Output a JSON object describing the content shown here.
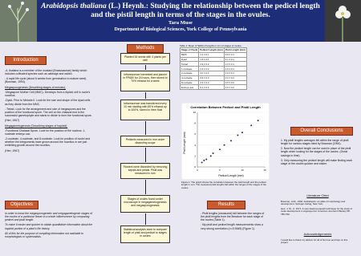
{
  "header": {
    "title_italic": "Arabidopsis thaliana",
    "title_rest": " (L.) Heynh.: Studying the relationship between the pedicel length and the pistil length in terms of the stages in the ovules.",
    "author": "Tara Muse",
    "affiliation": "Department of Biological Sciences, York College of Pennsylvania"
  },
  "introduction": {
    "heading": "Introduction",
    "paragraphs": [
      "-A. thaliana is a member of the mustard (Brassicaceae) family which includes cultivated species such as cabbage and radish.",
      "- A rapid life cycle (about 6 weeks from germination to mature seed) (Bowman, 1994)."
    ],
    "megasporogenesis": {
      "heading": "Megasporogenesis (Describing stages of meiosis):",
      "paragraphs": [
        "-Megaspore Mother Cell (MMC)- Develops from a diploid cell in ovule's nucellus.",
        "-Dyad- Prior to Meiosis II. Look for the size and shape of the dyad cells as they divide from the MMC.",
        "- Tetrad- Look for the arrangement and size of megaspores and the position of the functional spore. The cell on the chalazal end is the successful gametophyte and starts to divide to form the functional spore.",
        "(Herr, 1967)"
      ]
    },
    "megagametogenesis": {
      "heading": "Megagametogenesis (Describing stages of haploid):",
      "paragraphs": [
        "-Functional Chalazal Spore- Look for the position of the nucleus. 1-nucleate embryo sac.",
        "-2-nucleate, 4-nucleate, and 8-nucleate- Look for position of nuclei and whether the integuments have grown around the nucellus or are just exhibiting growth around the nucellus.",
        "(Herr, 1967)"
      ]
    }
  },
  "objectives": {
    "heading": "Objectives",
    "paragraphs": [
      "In order to know the megasporogenetic and megagametogenic stages of the ovules of a particular flower in a whole inflorescence by comparing pedicel and pistil length.",
      "To make it easier and quicker to obtain quantitative information about the haploid portion of a plant's life history.",
      "All of this for the purpose of compiling information not available to morphologists or systematists."
    ]
  },
  "methods": {
    "heading": "Methods",
    "steps": [
      "Planted 16 seeds with 4 plants per well",
      "Inflorescence harvested and placed in FPA50 for 24 hours, then stored to 70% ethanol for a week",
      "Inflorescence was transferred every 10 min starting with 80% ethanol up to 100%, stored in Hem fluid",
      "Pedicels measured in mm under dissecting scope",
      "Flowers were dissected by removing sepals and petals. Pistil was measured in mm",
      "Stages of ovules found under microscope in megagametogenesis and megasporogenesis",
      "Statistical analysis done to compare length of pistil and pedicel to stages in ovules"
    ]
  },
  "table": {
    "caption": "Table 1: Mean (± SEM) of lengths in mm of stages of ovules.",
    "columns": [
      "Stage of Ovule",
      "Pedicel Length (mm)",
      "Pistil Length (mm)"
    ],
    "rows": [
      [
        "MMC",
        "1.2 ± 0.1",
        "0.9 ± 0.1"
      ],
      [
        "Dyad",
        "1.5 ± 0.1",
        "1.1 ± 0.1"
      ],
      [
        "Tetrad",
        "1.9 ± 0.2",
        "1.3 ± 0.1"
      ],
      [
        "1-nucleate",
        "2.4 ± 0.2",
        "1.6 ± 0.1"
      ],
      [
        "2-nucleate",
        "3.0 ± 0.2",
        "1.9 ± 0.1"
      ],
      [
        "4-nucleate",
        "3.6 ± 0.3",
        "2.2 ± 0.2"
      ],
      [
        "8-nucleate",
        "4.3 ± 0.3",
        "2.6 ± 0.2"
      ],
      [
        "Embryo sac",
        "5.1 ± 0.4",
        "3.0 ± 0.2"
      ]
    ]
  },
  "chart_data": {
    "type": "scatter",
    "title": "Correlation Between Pedicel and Pistil Length",
    "x_label": "Pedicel Length (mm)",
    "y_label": "Pistil Length (mm)",
    "x": [
      1,
      1.5,
      2,
      3,
      3.5,
      5,
      6,
      7.5,
      9,
      10,
      12,
      13.5
    ],
    "values": [
      0.8,
      1.2,
      1.4,
      2,
      2.5,
      3.2,
      4,
      4.8,
      5.8,
      6.3,
      7.6,
      8.5
    ],
    "color": "#1d2d78",
    "xlim": [
      0,
      15
    ],
    "ylim": [
      0,
      10
    ],
    "xticks": [
      0,
      5,
      10,
      15
    ],
    "yticks": [
      0,
      2,
      4,
      6,
      8,
      10
    ]
  },
  "figure_caption": "Figure 1: The graph shows the correlation between the pistil length and the pedicel length in mm. The measured pistil lengths fall within the ranges of the stages of the ovules.",
  "results": {
    "heading": "Results",
    "paragraphs": [
      "- Pistil lengths (measured) fall between the ranges of the pistil lengths from the literature for each stage of the ovules (Table 1).",
      "- My pistil and pedicel length measurements show a very strong correlation (r²=0.9645) (Figure 1)."
    ]
  },
  "conclusions": {
    "heading": "Overall Conclusions",
    "items": [
      "1. My pistil lengths averages fell within the range of pistil length for various stages cited by Bowman (1994).",
      "2. Now the pedicel length can be used in place of the pistil length when looking for the stages of the ovules. (Great savings in time)",
      "3. Only measuring the pedicel length will make finding each stage of the ovules quicker and easier."
    ]
  },
  "literature": {
    "heading": "Literature Cited",
    "items": [
      "Bowman, John. 1994. Arabidopsis: an atlas of morphology and development. Springer-Verlag, New York.",
      "Herr, J. M., Jr. 1971. A new clearing-squash technique for the study of ovule development in angiosperms. American Journal of Botany 58: 785-790."
    ]
  },
  "acknowledgements": {
    "heading": "Acknowledgements",
    "text": "I would like to thank my advisor for all of his time and help on this project."
  }
}
